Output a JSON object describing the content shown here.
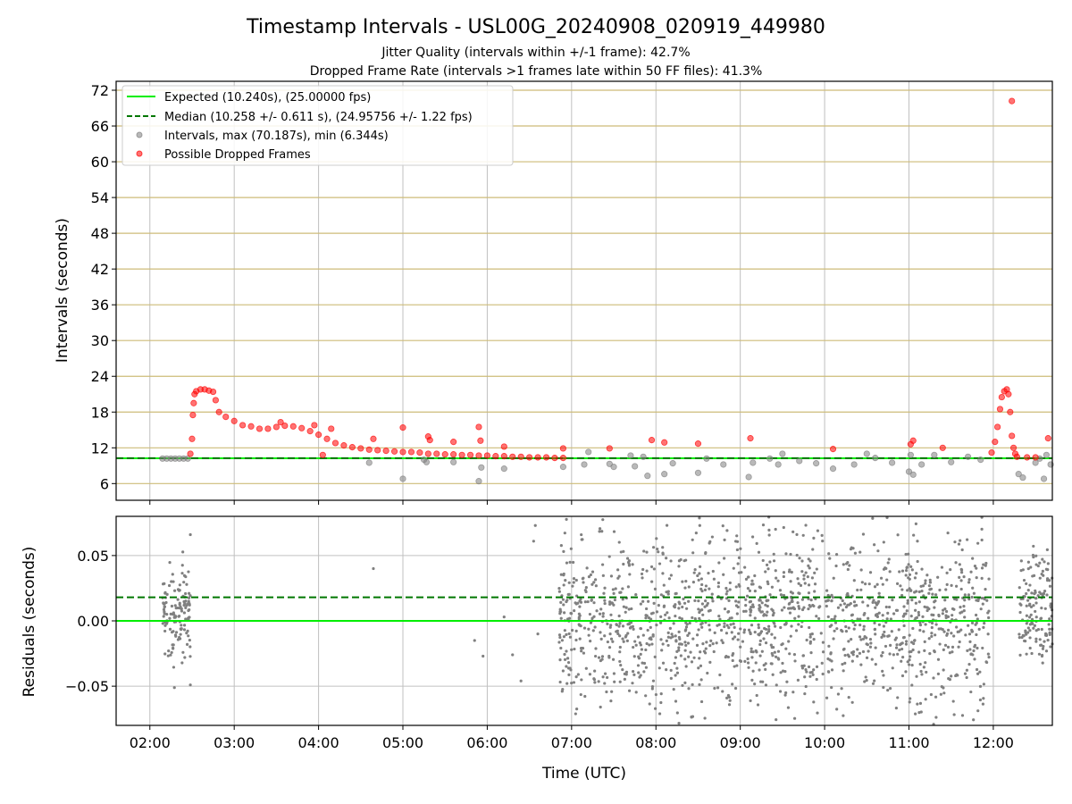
{
  "chart_data": [
    {
      "type": "scatter",
      "title": "Timestamp Intervals - USL00G_20240908_020919_449980",
      "subtitle_lines": [
        "Jitter Quality (intervals within +/-1 frame): 42.7%",
        "Dropped Frame Rate (intervals >1 frames late within 50 FF files): 41.3%"
      ],
      "xlabel": "",
      "ylabel": "Intervals (seconds)",
      "x_unit": "hours UTC",
      "xlim": [
        1.6,
        12.7
      ],
      "ylim": [
        3.2,
        73.5
      ],
      "yticks": [
        6,
        12,
        18,
        24,
        30,
        36,
        42,
        48,
        54,
        60,
        66,
        72
      ],
      "grid": true,
      "legend_position": "top-left",
      "legend": [
        "Expected (10.240s), (25.00000 fps)",
        "Median (10.258 +/- 0.611 s), (24.95756 +/- 1.22 fps)",
        "Intervals, max (70.187s), min (6.344s)",
        "Possible Dropped Frames"
      ],
      "expected_interval": 10.24,
      "median_interval": 10.258,
      "series": [
        {
          "name": "Intervals, max (70.187s), min (6.344s)",
          "color": "#808080",
          "points": [
            [
              2.15,
              10.2
            ],
            [
              2.2,
              10.2
            ],
            [
              2.25,
              10.2
            ],
            [
              2.3,
              10.2
            ],
            [
              2.35,
              10.2
            ],
            [
              2.4,
              10.2
            ],
            [
              2.45,
              10.2
            ],
            [
              4.6,
              9.5
            ],
            [
              5.0,
              6.8
            ],
            [
              5.25,
              10.0
            ],
            [
              5.28,
              9.6
            ],
            [
              5.6,
              9.6
            ],
            [
              5.9,
              6.4
            ],
            [
              5.93,
              8.7
            ],
            [
              6.2,
              8.5
            ],
            [
              6.9,
              8.8
            ],
            [
              7.15,
              9.2
            ],
            [
              7.2,
              11.3
            ],
            [
              7.45,
              9.3
            ],
            [
              7.5,
              8.8
            ],
            [
              7.7,
              10.7
            ],
            [
              7.75,
              8.9
            ],
            [
              7.85,
              10.5
            ],
            [
              7.9,
              7.3
            ],
            [
              8.1,
              7.6
            ],
            [
              8.2,
              9.4
            ],
            [
              8.5,
              7.8
            ],
            [
              8.6,
              10.2
            ],
            [
              8.8,
              9.2
            ],
            [
              9.1,
              7.1
            ],
            [
              9.15,
              9.5
            ],
            [
              9.35,
              10.2
            ],
            [
              9.45,
              9.2
            ],
            [
              9.5,
              11.0
            ],
            [
              9.7,
              9.8
            ],
            [
              9.9,
              9.4
            ],
            [
              10.1,
              8.5
            ],
            [
              10.35,
              9.2
            ],
            [
              10.5,
              11.0
            ],
            [
              10.6,
              10.3
            ],
            [
              10.8,
              9.5
            ],
            [
              11.0,
              8.0
            ],
            [
              11.02,
              10.8
            ],
            [
              11.05,
              7.5
            ],
            [
              11.15,
              9.2
            ],
            [
              11.3,
              10.8
            ],
            [
              11.5,
              9.6
            ],
            [
              11.7,
              10.5
            ],
            [
              11.85,
              10.0
            ],
            [
              12.3,
              7.6
            ],
            [
              12.35,
              7.0
            ],
            [
              12.5,
              9.5
            ],
            [
              12.55,
              10.2
            ],
            [
              12.6,
              6.8
            ],
            [
              12.63,
              10.8
            ],
            [
              12.68,
              9.2
            ]
          ]
        },
        {
          "name": "Possible Dropped Frames",
          "color": "#ff0000",
          "points": [
            [
              2.48,
              11.0
            ],
            [
              2.5,
              13.5
            ],
            [
              2.51,
              17.5
            ],
            [
              2.52,
              19.5
            ],
            [
              2.53,
              21.0
            ],
            [
              2.55,
              21.5
            ],
            [
              2.6,
              21.8
            ],
            [
              2.65,
              21.8
            ],
            [
              2.7,
              21.6
            ],
            [
              2.75,
              21.4
            ],
            [
              2.78,
              20.0
            ],
            [
              2.82,
              18.0
            ],
            [
              2.9,
              17.2
            ],
            [
              3.0,
              16.5
            ],
            [
              3.1,
              15.8
            ],
            [
              3.2,
              15.6
            ],
            [
              3.3,
              15.2
            ],
            [
              3.4,
              15.2
            ],
            [
              3.5,
              15.5
            ],
            [
              3.6,
              15.7
            ],
            [
              3.7,
              15.6
            ],
            [
              3.8,
              15.3
            ],
            [
              3.9,
              14.8
            ],
            [
              4.0,
              14.2
            ],
            [
              4.1,
              13.5
            ],
            [
              4.2,
              12.8
            ],
            [
              4.3,
              12.4
            ],
            [
              4.4,
              12.1
            ],
            [
              4.5,
              11.9
            ],
            [
              4.6,
              11.7
            ],
            [
              4.7,
              11.6
            ],
            [
              4.8,
              11.5
            ],
            [
              4.9,
              11.4
            ],
            [
              5.0,
              11.3
            ],
            [
              5.1,
              11.3
            ],
            [
              5.2,
              11.2
            ],
            [
              5.3,
              11.0
            ],
            [
              5.4,
              11.0
            ],
            [
              5.5,
              10.9
            ],
            [
              5.6,
              10.9
            ],
            [
              5.7,
              10.8
            ],
            [
              5.8,
              10.8
            ],
            [
              5.9,
              10.7
            ],
            [
              6.0,
              10.7
            ],
            [
              6.1,
              10.6
            ],
            [
              6.2,
              10.6
            ],
            [
              6.3,
              10.5
            ],
            [
              6.4,
              10.5
            ],
            [
              6.5,
              10.4
            ],
            [
              6.6,
              10.4
            ],
            [
              6.7,
              10.4
            ],
            [
              6.8,
              10.3
            ],
            [
              6.9,
              10.3
            ],
            [
              3.55,
              16.3
            ],
            [
              3.95,
              15.8
            ],
            [
              4.15,
              15.2
            ],
            [
              4.05,
              10.8
            ],
            [
              4.65,
              13.5
            ],
            [
              5.0,
              15.4
            ],
            [
              5.3,
              13.9
            ],
            [
              5.32,
              13.3
            ],
            [
              5.6,
              13.0
            ],
            [
              5.9,
              15.5
            ],
            [
              5.92,
              13.2
            ],
            [
              6.2,
              12.2
            ],
            [
              6.9,
              11.9
            ],
            [
              7.45,
              11.9
            ],
            [
              7.95,
              13.3
            ],
            [
              8.1,
              12.9
            ],
            [
              8.5,
              12.7
            ],
            [
              9.12,
              13.6
            ],
            [
              10.1,
              11.8
            ],
            [
              11.02,
              12.6
            ],
            [
              11.05,
              13.2
            ],
            [
              11.4,
              12.0
            ],
            [
              11.98,
              11.2
            ],
            [
              12.02,
              13.0
            ],
            [
              12.05,
              15.5
            ],
            [
              12.08,
              18.5
            ],
            [
              12.1,
              20.5
            ],
            [
              12.13,
              21.5
            ],
            [
              12.16,
              21.8
            ],
            [
              12.18,
              21.0
            ],
            [
              12.2,
              18.0
            ],
            [
              12.22,
              14.0
            ],
            [
              12.24,
              12.0
            ],
            [
              12.26,
              11.0
            ],
            [
              12.28,
              10.5
            ],
            [
              12.4,
              10.4
            ],
            [
              12.5,
              10.4
            ],
            [
              12.65,
              13.6
            ],
            [
              12.22,
              70.187
            ]
          ]
        }
      ]
    },
    {
      "type": "scatter",
      "title": "",
      "xlabel": "Time (UTC)",
      "ylabel": "Residuals (seconds)",
      "xlim": [
        1.6,
        12.7
      ],
      "ylim": [
        -0.08,
        0.08
      ],
      "yticks": [
        -0.05,
        0.0,
        0.05
      ],
      "ytick_labels": [
        "−0.05",
        "0.00",
        "0.05"
      ],
      "xtick_values": [
        2,
        3,
        4,
        5,
        6,
        7,
        8,
        9,
        10,
        11,
        12
      ],
      "xtick_labels": [
        "02:00",
        "03:00",
        "04:00",
        "05:00",
        "06:00",
        "07:00",
        "08:00",
        "09:00",
        "10:00",
        "11:00",
        "12:00"
      ],
      "grid": true,
      "expected_line": 0.0,
      "median_line": 0.018,
      "residual_clusters": [
        {
          "x_range": [
            2.15,
            2.48
          ],
          "count": 130,
          "y_sd": 0.018,
          "y_mean": 0.005
        },
        {
          "x_range": [
            6.85,
            11.95
          ],
          "count": 1500,
          "y_sd": 0.035,
          "y_mean": 0.0
        },
        {
          "x_range": [
            12.3,
            12.7
          ],
          "count": 140,
          "y_sd": 0.022,
          "y_mean": 0.008
        }
      ],
      "residual_extra_points": [
        [
          2.48,
          0.066
        ],
        [
          2.48,
          -0.049
        ],
        [
          4.65,
          0.04
        ],
        [
          5.85,
          -0.015
        ],
        [
          5.95,
          -0.027
        ],
        [
          6.2,
          0.003
        ],
        [
          6.3,
          -0.026
        ],
        [
          6.4,
          -0.046
        ],
        [
          6.55,
          0.061
        ],
        [
          6.57,
          0.073
        ],
        [
          6.6,
          -0.01
        ]
      ],
      "series": [
        {
          "name": "",
          "color": "#808080"
        }
      ]
    }
  ],
  "colors": {
    "expected": "#00ee00",
    "median": "#007700",
    "grid": "#c0c0c0",
    "hgrid": "#cdbb78",
    "intervals": "#808080",
    "dropped": "#ff0000"
  }
}
